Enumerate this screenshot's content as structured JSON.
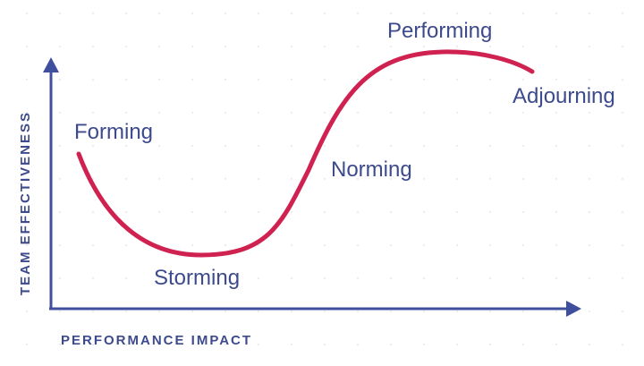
{
  "colors": {
    "axis": "#3f4f9e",
    "text": "#3d4a8c",
    "curve": "#cf2250",
    "grid_dot": "#ececec"
  },
  "axes": {
    "y_label": "TEAM EFFECTIVENESS",
    "x_label": "PERFORMANCE IMPACT"
  },
  "stages": {
    "forming": "Forming",
    "storming": "Storming",
    "norming": "Norming",
    "performing": "Performing",
    "adjourning": "Adjourning"
  }
}
